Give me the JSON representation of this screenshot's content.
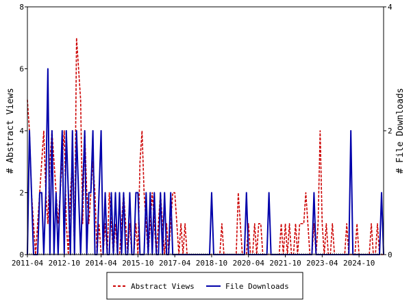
{
  "chart_data": {
    "type": "line",
    "title": "",
    "xlabel": "",
    "ylabel": "# Abstract Views",
    "y2label": "# File Downloads",
    "ylim": [
      0,
      8
    ],
    "y2lim": [
      0,
      4
    ],
    "yticks": [
      "0",
      "2",
      "4",
      "6",
      "8"
    ],
    "y2ticks": [
      "0",
      "2",
      "4"
    ],
    "x_tick_labels": [
      "2011-04",
      "2012-10",
      "2014-04",
      "2015-10",
      "2017-04",
      "2018-10",
      "2020-04",
      "2021-10",
      "2023-04",
      "2024-10"
    ],
    "x_range_months": [
      0,
      174
    ],
    "grid": false,
    "legend_position": "bottom",
    "colors": {
      "abstract_views": "#cc0000",
      "file_downloads": "#0000aa"
    },
    "series": [
      {
        "name": "Abstract Views",
        "axis": "left",
        "style": "dashed",
        "values": [
          5,
          4,
          2,
          1,
          0,
          1,
          2,
          3,
          4,
          2,
          1,
          3,
          4,
          3,
          2,
          1,
          2,
          3,
          4,
          1,
          0,
          2,
          3,
          0,
          7,
          6,
          5,
          1,
          4,
          2,
          1,
          2,
          3,
          2,
          0,
          1,
          0,
          0,
          1,
          0,
          2,
          1,
          0,
          1,
          0,
          0,
          1,
          2,
          1,
          0,
          1,
          0,
          0,
          1,
          0,
          3,
          4,
          2,
          1,
          0,
          1,
          2,
          1,
          0,
          1,
          2,
          1,
          0,
          1,
          0,
          1,
          2,
          2,
          1,
          0,
          1,
          0,
          1,
          0,
          0,
          0,
          0,
          0,
          0,
          0,
          0,
          0,
          0,
          0,
          0,
          0,
          0,
          0,
          0,
          0,
          1,
          0,
          0,
          0,
          0,
          0,
          0,
          0,
          2,
          1,
          0,
          0,
          0,
          1,
          0,
          0,
          1,
          0,
          1,
          1,
          0,
          0,
          0,
          0,
          0,
          0,
          0,
          0,
          0,
          1,
          0,
          1,
          0,
          1,
          0,
          0,
          1,
          0,
          1,
          1,
          1,
          2,
          1,
          0,
          0,
          1,
          0,
          1,
          4,
          1,
          0,
          1,
          0,
          0,
          1,
          0,
          0,
          0,
          0,
          0,
          0,
          1,
          0,
          0,
          0,
          0,
          1,
          0,
          0,
          0,
          0,
          0,
          0,
          1,
          0,
          0,
          1,
          0,
          0,
          0
        ]
      },
      {
        "name": "File Downloads",
        "axis": "right",
        "style": "solid",
        "values": [
          0,
          2,
          1,
          0,
          0,
          0,
          1,
          1,
          0,
          1,
          3,
          0,
          2,
          0,
          1,
          0,
          1,
          2,
          0,
          2,
          1,
          0,
          2,
          0,
          2,
          1,
          0,
          1,
          2,
          0,
          1,
          1,
          2,
          0,
          0,
          1,
          2,
          0,
          1,
          0,
          0,
          1,
          0,
          1,
          0,
          1,
          0,
          1,
          0,
          0,
          1,
          0,
          0,
          1,
          1,
          0,
          0,
          0,
          1,
          0,
          1,
          0,
          1,
          0,
          0,
          1,
          0,
          1,
          0,
          0,
          1,
          0,
          0,
          0,
          0,
          0,
          0,
          0,
          0,
          0,
          0,
          0,
          0,
          0,
          0,
          0,
          0,
          0,
          0,
          0,
          1,
          0,
          0,
          0,
          0,
          0,
          0,
          0,
          0,
          0,
          0,
          0,
          0,
          0,
          0,
          0,
          0,
          1,
          0,
          0,
          0,
          0,
          0,
          0,
          0,
          0,
          0,
          0,
          1,
          0,
          0,
          0,
          0,
          0,
          0,
          0,
          0,
          0,
          0,
          0,
          0,
          0,
          0,
          0,
          0,
          0,
          0,
          0,
          0,
          0,
          1,
          0,
          0,
          0,
          0,
          0,
          0,
          0,
          0,
          0,
          0,
          0,
          0,
          0,
          0,
          0,
          0,
          0,
          2,
          0,
          0,
          0,
          0,
          0,
          0,
          0,
          0,
          0,
          0,
          0,
          0,
          0,
          0,
          1,
          0
        ]
      }
    ]
  }
}
